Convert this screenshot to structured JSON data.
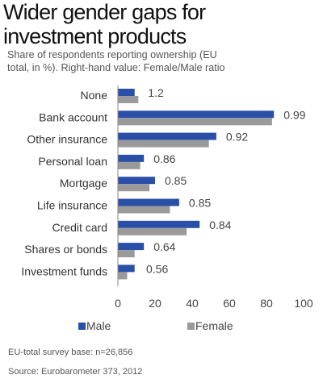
{
  "title_line1": "Wider gender gaps for",
  "title_line2": "investment products",
  "subtitle_line1": "Share of respondents reporting ownership (EU",
  "subtitle_line2": "total, in %). Right-hand value: Female/Male ratio",
  "colors": {
    "male": "#2a4fa8",
    "female": "#9a9a9a"
  },
  "chart_data": {
    "type": "bar",
    "orientation": "horizontal",
    "categories": [
      "None",
      "Bank account",
      "Other insurance",
      "Personal loan",
      "Mortgage",
      "Life insurance",
      "Credit card",
      "Shares or bonds",
      "Investment funds"
    ],
    "series": [
      {
        "name": "Male",
        "values": [
          9,
          84,
          53,
          14,
          20,
          33,
          44,
          14,
          9
        ]
      },
      {
        "name": "Female",
        "values": [
          11,
          83,
          49,
          12,
          17,
          28,
          37,
          9,
          5
        ]
      }
    ],
    "ratio_labels": [
      "1.2",
      "0.99",
      "0.92",
      "0.86",
      "0.85",
      "0.85",
      "0.84",
      "0.64",
      "0.56"
    ],
    "xlim": [
      0,
      100
    ],
    "xticks": [
      0,
      20,
      40,
      60,
      80,
      100
    ],
    "grid": false,
    "legend_position": "bottom"
  },
  "legend": {
    "male": "Male",
    "female": "Female"
  },
  "footnote": "EU-total survey base: n=26,856",
  "source": "Source: Eurobarometer 373, 2012"
}
